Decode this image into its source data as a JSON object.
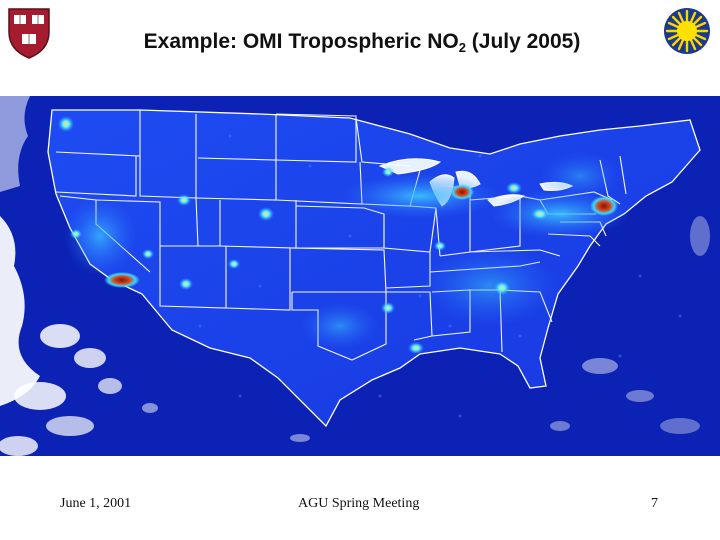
{
  "slide": {
    "title_prefix": "Example: OMI Tropospheric NO",
    "title_subscript": "2",
    "title_suffix": " (July 2005)"
  },
  "footer": {
    "date": "June 1, 2001",
    "meeting": "AGU Spring Meeting",
    "page_number": "7"
  },
  "logos": {
    "left": "harvard-shield",
    "right": "sun-emblem"
  },
  "map": {
    "subject": "OMI tropospheric NO2 column over the contiguous United States",
    "background_color": "#0a1ea8",
    "low_color": "#1e46ff",
    "mid_color": "#34c6ff",
    "high_color": "#c0391b",
    "boundary_color": "#ffffff",
    "missing_data_color": "#ffffff"
  }
}
